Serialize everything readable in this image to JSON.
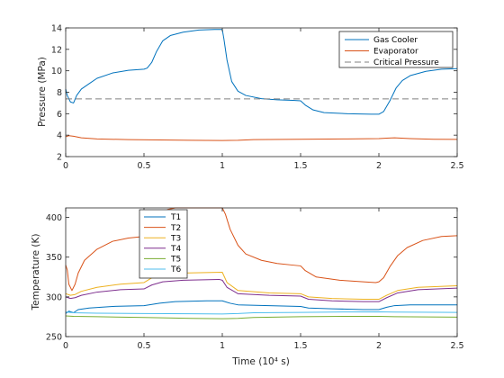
{
  "chart_data": [
    {
      "type": "line",
      "title": "",
      "xlabel": "",
      "ylabel": "Pressure (MPa)",
      "xlim": [
        0,
        2.5
      ],
      "ylim": [
        2,
        14
      ],
      "x_ticks": [
        "0",
        "0.5",
        "1",
        "1.5",
        "2",
        "2.5"
      ],
      "y_ticks": [
        "2",
        "4",
        "6",
        "8",
        "10",
        "12",
        "14"
      ],
      "grid": false,
      "legend_position": "top-right",
      "series": [
        {
          "name": "Gas Cooler",
          "color": "#0072BD",
          "points": [
            [
              0,
              8.3
            ],
            [
              0.01,
              7.7
            ],
            [
              0.03,
              7.1
            ],
            [
              0.05,
              7.0
            ],
            [
              0.07,
              7.7
            ],
            [
              0.1,
              8.3
            ],
            [
              0.15,
              8.8
            ],
            [
              0.2,
              9.3
            ],
            [
              0.3,
              9.8
            ],
            [
              0.4,
              10.05
            ],
            [
              0.5,
              10.15
            ],
            [
              0.52,
              10.25
            ],
            [
              0.55,
              10.8
            ],
            [
              0.58,
              11.8
            ],
            [
              0.62,
              12.8
            ],
            [
              0.67,
              13.3
            ],
            [
              0.75,
              13.6
            ],
            [
              0.85,
              13.8
            ],
            [
              0.95,
              13.85
            ],
            [
              1.0,
              13.85
            ],
            [
              1.01,
              13.0
            ],
            [
              1.03,
              11.0
            ],
            [
              1.06,
              9.0
            ],
            [
              1.1,
              8.1
            ],
            [
              1.15,
              7.7
            ],
            [
              1.25,
              7.4
            ],
            [
              1.35,
              7.3
            ],
            [
              1.45,
              7.25
            ],
            [
              1.5,
              7.2
            ],
            [
              1.53,
              6.8
            ],
            [
              1.58,
              6.35
            ],
            [
              1.65,
              6.1
            ],
            [
              1.8,
              6.0
            ],
            [
              1.95,
              5.95
            ],
            [
              2.0,
              5.95
            ],
            [
              2.03,
              6.2
            ],
            [
              2.07,
              7.2
            ],
            [
              2.11,
              8.4
            ],
            [
              2.15,
              9.1
            ],
            [
              2.2,
              9.55
            ],
            [
              2.3,
              9.95
            ],
            [
              2.4,
              10.15
            ],
            [
              2.5,
              10.2
            ]
          ]
        },
        {
          "name": "Evaporator",
          "color": "#D95319",
          "points": [
            [
              0,
              3.85
            ],
            [
              0.02,
              3.95
            ],
            [
              0.05,
              3.9
            ],
            [
              0.1,
              3.75
            ],
            [
              0.2,
              3.65
            ],
            [
              0.4,
              3.58
            ],
            [
              0.6,
              3.55
            ],
            [
              0.8,
              3.52
            ],
            [
              1.0,
              3.5
            ],
            [
              1.1,
              3.52
            ],
            [
              1.2,
              3.58
            ],
            [
              1.5,
              3.62
            ],
            [
              1.8,
              3.65
            ],
            [
              2.0,
              3.68
            ],
            [
              2.05,
              3.72
            ],
            [
              2.1,
              3.75
            ],
            [
              2.2,
              3.68
            ],
            [
              2.35,
              3.62
            ],
            [
              2.5,
              3.6
            ]
          ]
        },
        {
          "name": "Critical Pressure",
          "color": "#808080",
          "dashed": true,
          "points": [
            [
              0,
              7.38
            ],
            [
              2.5,
              7.38
            ]
          ]
        }
      ]
    },
    {
      "type": "line",
      "title": "",
      "xlabel": "Time (10⁴ s)",
      "ylabel": "Temperature (K)",
      "xlim": [
        0,
        2.5
      ],
      "ylim": [
        250,
        412
      ],
      "x_ticks": [
        "0",
        "0.5",
        "1",
        "1.5",
        "2",
        "2.5"
      ],
      "y_ticks": [
        "250",
        "300",
        "350",
        "400"
      ],
      "grid": false,
      "legend_position": "top-left",
      "series": [
        {
          "name": "T1",
          "color": "#0072BD",
          "points": [
            [
              0,
              279
            ],
            [
              0.02,
              282
            ],
            [
              0.05,
              280
            ],
            [
              0.08,
              284
            ],
            [
              0.15,
              286
            ],
            [
              0.3,
              288
            ],
            [
              0.5,
              289
            ],
            [
              0.6,
              292
            ],
            [
              0.7,
              294
            ],
            [
              0.9,
              295
            ],
            [
              1.0,
              295
            ],
            [
              1.05,
              292
            ],
            [
              1.1,
              290
            ],
            [
              1.3,
              289
            ],
            [
              1.5,
              288
            ],
            [
              1.55,
              286
            ],
            [
              1.7,
              285
            ],
            [
              1.9,
              284
            ],
            [
              2.0,
              284
            ],
            [
              2.05,
              287
            ],
            [
              2.1,
              289
            ],
            [
              2.2,
              290
            ],
            [
              2.5,
              290
            ]
          ]
        },
        {
          "name": "T2",
          "color": "#D95319",
          "points": [
            [
              0,
              340
            ],
            [
              0.01,
              334
            ],
            [
              0.02,
              316
            ],
            [
              0.04,
              308
            ],
            [
              0.06,
              316
            ],
            [
              0.08,
              330
            ],
            [
              0.12,
              346
            ],
            [
              0.2,
              360
            ],
            [
              0.3,
              370
            ],
            [
              0.4,
              374
            ],
            [
              0.5,
              376
            ],
            [
              0.52,
              378
            ],
            [
              0.56,
              392
            ],
            [
              0.6,
              404
            ],
            [
              0.65,
              410
            ],
            [
              0.7,
              412
            ],
            [
              0.95,
              412
            ],
            [
              1.0,
              412
            ],
            [
              1.02,
              404
            ],
            [
              1.05,
              385
            ],
            [
              1.1,
              365
            ],
            [
              1.15,
              354
            ],
            [
              1.25,
              346
            ],
            [
              1.35,
              342
            ],
            [
              1.45,
              340
            ],
            [
              1.5,
              339
            ],
            [
              1.53,
              333
            ],
            [
              1.6,
              325
            ],
            [
              1.75,
              321
            ],
            [
              1.9,
              319
            ],
            [
              1.98,
              318
            ],
            [
              2.0,
              319
            ],
            [
              2.03,
              324
            ],
            [
              2.07,
              338
            ],
            [
              2.12,
              352
            ],
            [
              2.18,
              362
            ],
            [
              2.28,
              371
            ],
            [
              2.4,
              376
            ],
            [
              2.5,
              377
            ]
          ]
        },
        {
          "name": "T3",
          "color": "#EDB120",
          "points": [
            [
              0,
              304
            ],
            [
              0.03,
              302
            ],
            [
              0.06,
              303
            ],
            [
              0.1,
              307
            ],
            [
              0.2,
              312
            ],
            [
              0.35,
              316
            ],
            [
              0.5,
              318
            ],
            [
              0.55,
              324
            ],
            [
              0.62,
              328
            ],
            [
              0.75,
              330
            ],
            [
              1.0,
              331
            ],
            [
              1.03,
              318
            ],
            [
              1.1,
              308
            ],
            [
              1.3,
              305
            ],
            [
              1.5,
              304
            ],
            [
              1.55,
              300
            ],
            [
              1.7,
              298
            ],
            [
              1.9,
              297
            ],
            [
              2.0,
              297
            ],
            [
              2.05,
              302
            ],
            [
              2.12,
              308
            ],
            [
              2.25,
              312
            ],
            [
              2.5,
              314
            ]
          ]
        },
        {
          "name": "T4",
          "color": "#7E2F8E",
          "points": [
            [
              0,
              300
            ],
            [
              0.03,
              298
            ],
            [
              0.06,
              299
            ],
            [
              0.1,
              302
            ],
            [
              0.2,
              306
            ],
            [
              0.35,
              309
            ],
            [
              0.5,
              310
            ],
            [
              0.55,
              315
            ],
            [
              0.62,
              319
            ],
            [
              0.75,
              321
            ],
            [
              0.98,
              322
            ],
            [
              1.0,
              321
            ],
            [
              1.03,
              312
            ],
            [
              1.1,
              304
            ],
            [
              1.3,
              302
            ],
            [
              1.5,
              301
            ],
            [
              1.55,
              297
            ],
            [
              1.7,
              295
            ],
            [
              1.9,
              294
            ],
            [
              2.0,
              294
            ],
            [
              2.05,
              299
            ],
            [
              2.12,
              305
            ],
            [
              2.25,
              309
            ],
            [
              2.5,
              311
            ]
          ]
        },
        {
          "name": "T5",
          "color": "#77AC30",
          "points": [
            [
              0,
              276
            ],
            [
              0.05,
              275.5
            ],
            [
              0.2,
              275
            ],
            [
              0.5,
              274
            ],
            [
              0.8,
              273
            ],
            [
              1.0,
              272.5
            ],
            [
              1.1,
              273
            ],
            [
              1.2,
              274
            ],
            [
              1.5,
              275
            ],
            [
              1.8,
              275.5
            ],
            [
              2.0,
              275.5
            ],
            [
              2.1,
              275
            ],
            [
              2.5,
              274.5
            ]
          ]
        },
        {
          "name": "T6",
          "color": "#4DBEEE",
          "points": [
            [
              0,
              281
            ],
            [
              0.05,
              280
            ],
            [
              0.2,
              279.5
            ],
            [
              0.5,
              279
            ],
            [
              0.8,
              278.8
            ],
            [
              1.0,
              278.5
            ],
            [
              1.1,
              279
            ],
            [
              1.2,
              280
            ],
            [
              1.5,
              280.5
            ],
            [
              1.8,
              281
            ],
            [
              2.0,
              281.2
            ],
            [
              2.1,
              280.8
            ],
            [
              2.5,
              280.5
            ]
          ]
        }
      ]
    }
  ]
}
